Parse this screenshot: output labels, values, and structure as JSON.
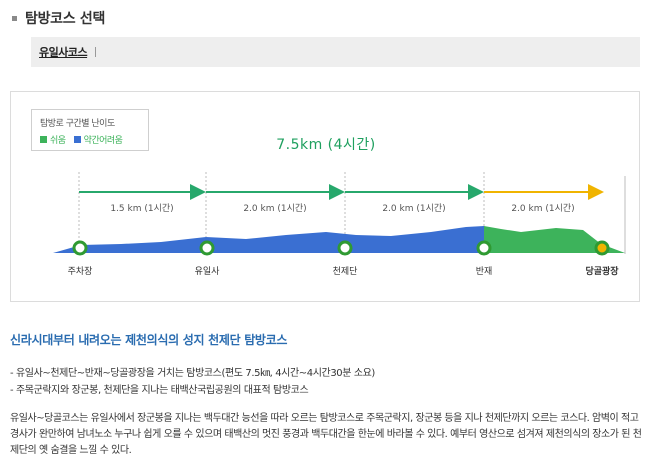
{
  "section": {
    "title": "탐방코스 선택"
  },
  "tabs": [
    {
      "label": "유일사코스"
    }
  ],
  "legend": {
    "title": "탐방로 구간별 난이도",
    "items": [
      {
        "label": "쉬움",
        "color": "#3db35b"
      },
      {
        "label": "약간어려움",
        "color": "#3a6fd2"
      }
    ]
  },
  "route": {
    "total": "7.5km (4시간)",
    "segments": [
      {
        "label": "1.5 km (1시간)",
        "color": "#27a86c"
      },
      {
        "label": "2.0 km (1시간)",
        "color": "#27a86c"
      },
      {
        "label": "2.0 km (1시간)",
        "color": "#27a86c"
      },
      {
        "label": "2.0 km (1시간)",
        "color": "#f0b400"
      }
    ],
    "stops": [
      {
        "name": "주차장"
      },
      {
        "name": "유일사"
      },
      {
        "name": "천제단"
      },
      {
        "name": "반재"
      },
      {
        "name": "당골광장"
      }
    ]
  },
  "content": {
    "heading": "신라시대부터 내려오는 제천의식의 성지 천제단 탐방코스",
    "bullets": [
      "- 유일사~천제단~반재~당골광장을 거치는 탐방코스(편도 7.5㎞, 4시간~4시간30분 소요)",
      "- 주목군락지와 장군봉, 천제단을 지나는 태백산국립공원의 대표적 탐방코스"
    ],
    "description": "유일사~당골코스는 유일사에서 장군봉을 지나는 백두대간 능선을 따라 오르는 탐방코스로 주목군락지, 장군봉 등을 지나 천제단까지 오르는 코스다. 암벽이 적고 경사가 완만하여 남녀노소 누구나 쉽게 오를 수 있으며 태백산의 멋진 풍경과 백두대간을 한눈에 바라볼 수 있다. 예부터 영산으로 섬겨져 제천의식의 장소가 된 천제단의 옛 숨결을 느낄 수 있다."
  }
}
